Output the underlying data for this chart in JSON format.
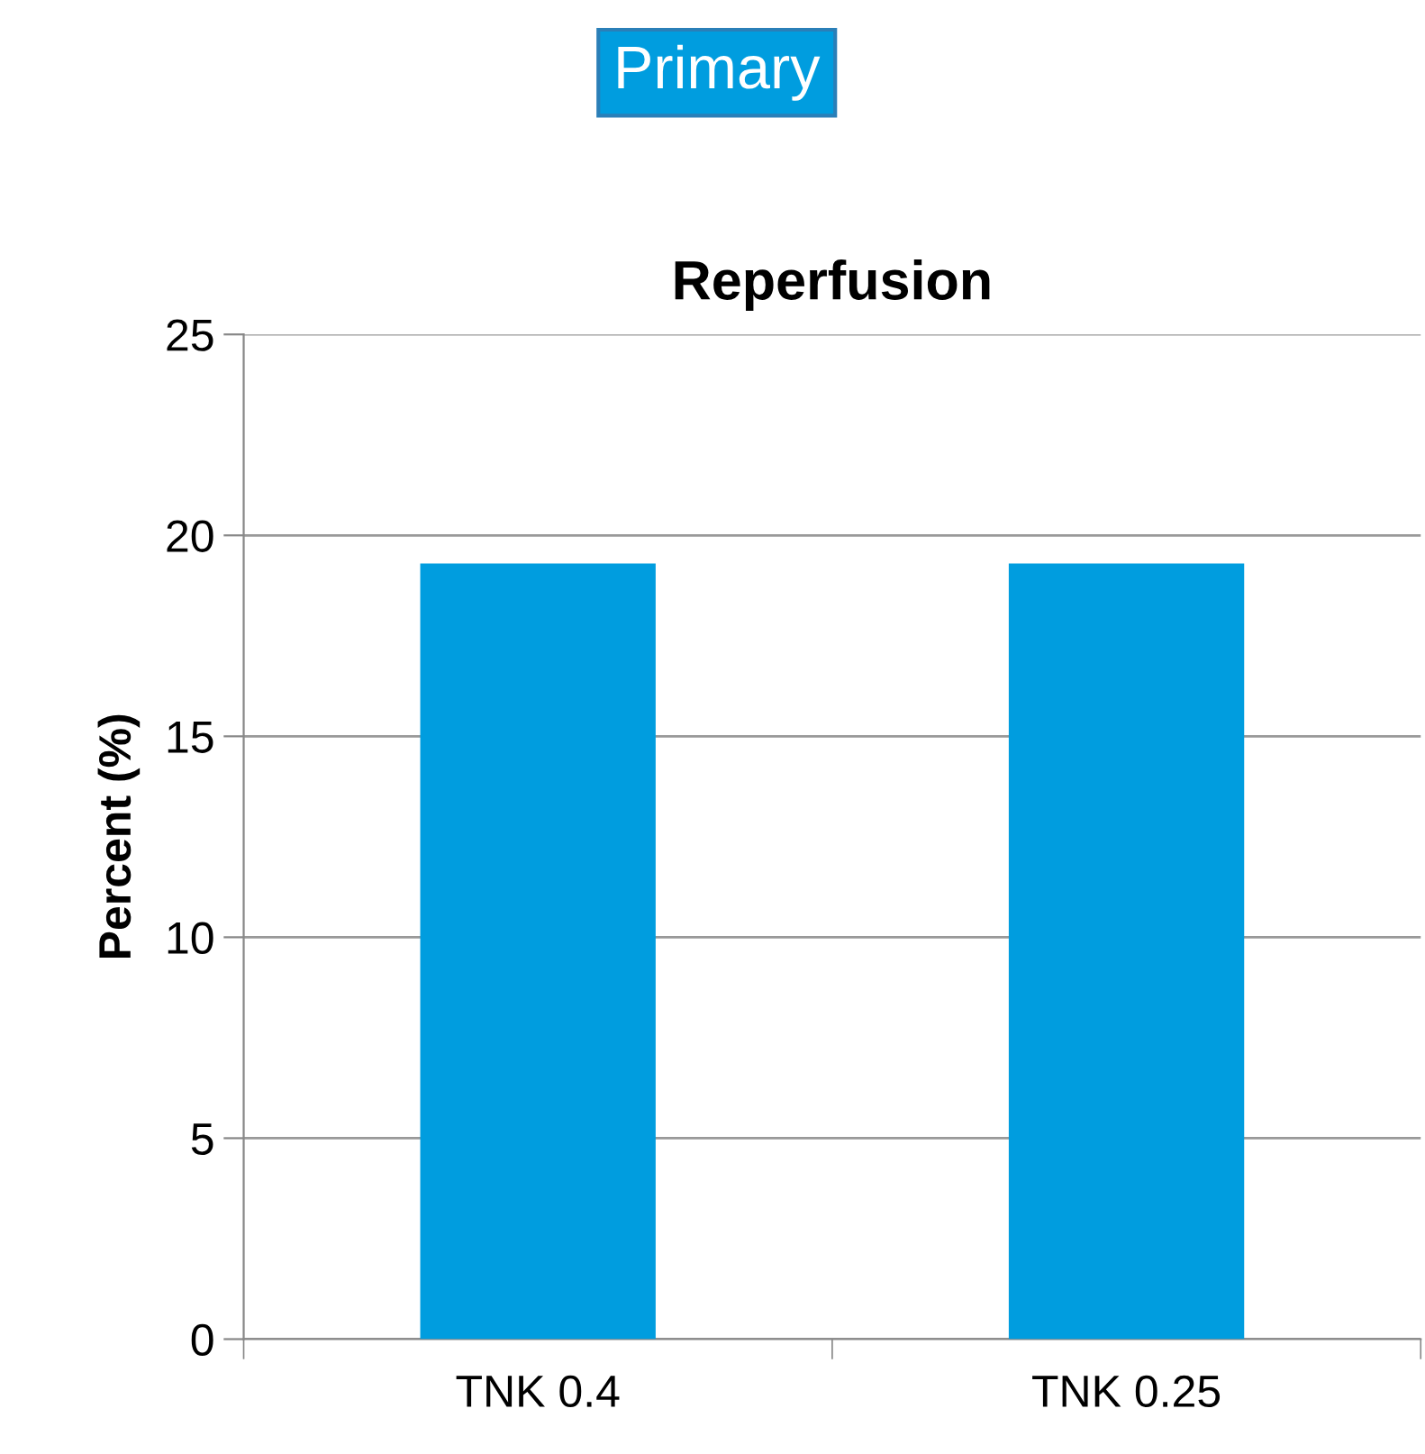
{
  "chart_data": {
    "type": "bar",
    "title": "Reperfusion",
    "ylabel": "Percent (%)",
    "annotations": [
      "Primary"
    ],
    "categories": [
      "TNK 0.4",
      "TNK 0.25"
    ],
    "values": [
      19.3,
      19.3
    ],
    "color": "#009ddf",
    "ylim": [
      0,
      25
    ],
    "yticks": [
      0,
      5,
      10,
      15,
      20,
      25
    ],
    "grid": "y",
    "legend": false
  }
}
